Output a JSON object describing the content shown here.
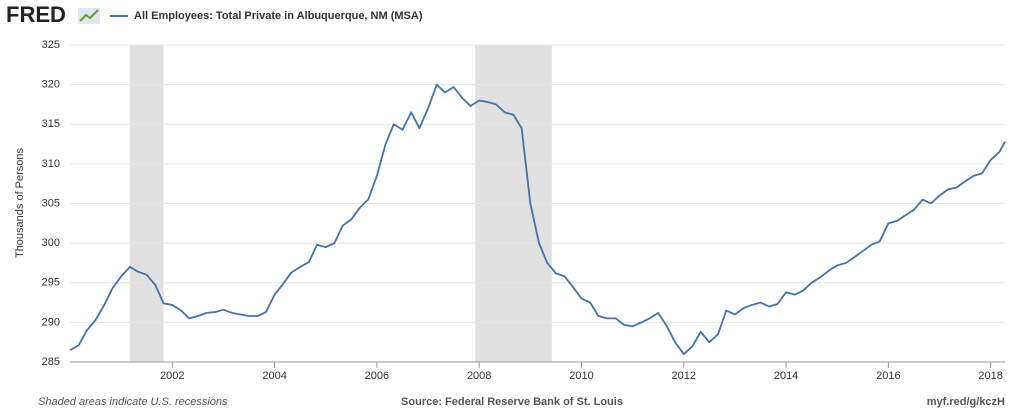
{
  "logo": "FRED",
  "chart_data": {
    "type": "line",
    "ylabel": "Thousands of Persons",
    "footer_left": "Shaded areas indicate U.S. recessions",
    "footer_center": "Source: Federal Reserve Bank of St. Louis",
    "footer_right": "myf.red/g/kczH",
    "x": [
      2000,
      2000.17,
      2000.33,
      2000.5,
      2000.67,
      2000.83,
      2001,
      2001.17,
      2001.33,
      2001.5,
      2001.67,
      2001.83,
      2002,
      2002.17,
      2002.33,
      2002.5,
      2002.67,
      2002.83,
      2003,
      2003.17,
      2003.33,
      2003.5,
      2003.67,
      2003.83,
      2004,
      2004.17,
      2004.33,
      2004.5,
      2004.67,
      2004.83,
      2005,
      2005.17,
      2005.33,
      2005.5,
      2005.67,
      2005.83,
      2006,
      2006.17,
      2006.33,
      2006.5,
      2006.67,
      2006.83,
      2007,
      2007.17,
      2007.33,
      2007.5,
      2007.67,
      2007.83,
      2008,
      2008.17,
      2008.33,
      2008.5,
      2008.67,
      2008.83,
      2009,
      2009.17,
      2009.33,
      2009.5,
      2009.67,
      2009.83,
      2010,
      2010.17,
      2010.33,
      2010.5,
      2010.67,
      2010.83,
      2011,
      2011.17,
      2011.33,
      2011.5,
      2011.67,
      2011.83,
      2012,
      2012.17,
      2012.33,
      2012.5,
      2012.67,
      2012.83,
      2013,
      2013.17,
      2013.33,
      2013.5,
      2013.67,
      2013.83,
      2014,
      2014.17,
      2014.33,
      2014.5,
      2014.67,
      2014.83,
      2015,
      2015.17,
      2015.33,
      2015.5,
      2015.67,
      2015.83,
      2016,
      2016.17,
      2016.33,
      2016.5,
      2016.67,
      2016.83,
      2017,
      2017.17,
      2017.33,
      2017.5,
      2017.67,
      2017.83,
      2018,
      2018.17,
      2018.28
    ],
    "series": [
      {
        "name": "All Employees: Total Private in Albuquerque, NM (MSA)",
        "color": "#4572a7",
        "values": [
          286.5,
          287.1,
          289,
          290.3,
          292.2,
          294.3,
          295.8,
          297,
          296.4,
          296,
          294.7,
          292.4,
          292.2,
          291.5,
          290.5,
          290.8,
          291.2,
          291.3,
          291.6,
          291.2,
          291,
          290.8,
          290.8,
          291.3,
          293.5,
          294.9,
          296.3,
          297,
          297.6,
          299.8,
          299.5,
          300,
          302.2,
          303,
          304.5,
          305.5,
          308.5,
          312.5,
          315,
          314.3,
          316.5,
          314.5,
          317,
          320,
          319,
          319.7,
          318.3,
          317.3,
          318,
          317.8,
          317.5,
          316.5,
          316.2,
          314.5,
          305,
          300,
          297.5,
          296.2,
          295.8,
          294.5,
          293,
          292.5,
          290.8,
          290.5,
          290.5,
          289.7,
          289.5,
          290,
          290.5,
          291.2,
          289.5,
          287.5,
          286,
          287,
          288.8,
          287.5,
          288.5,
          291.5,
          291,
          291.8,
          292.2,
          292.5,
          292,
          292.3,
          293.8,
          293.5,
          294,
          295,
          295.7,
          296.5,
          297.2,
          297.5,
          298.2,
          299,
          299.8,
          300.2,
          302.5,
          302.8,
          303.5,
          304.2,
          305.5,
          305,
          306,
          306.8,
          307,
          307.8,
          308.5,
          308.8,
          310.5,
          311.5,
          312.8
        ]
      }
    ],
    "recessions": [
      [
        2001.17,
        2001.83
      ],
      [
        2007.92,
        2009.42
      ]
    ],
    "xlim": [
      2000,
      2018.28
    ],
    "xticks": [
      2002,
      2004,
      2006,
      2008,
      2010,
      2012,
      2014,
      2016,
      2018
    ],
    "ylim": [
      285,
      325
    ],
    "yticks": [
      285,
      290,
      295,
      300,
      305,
      310,
      315,
      320,
      325
    ],
    "grid": true
  }
}
